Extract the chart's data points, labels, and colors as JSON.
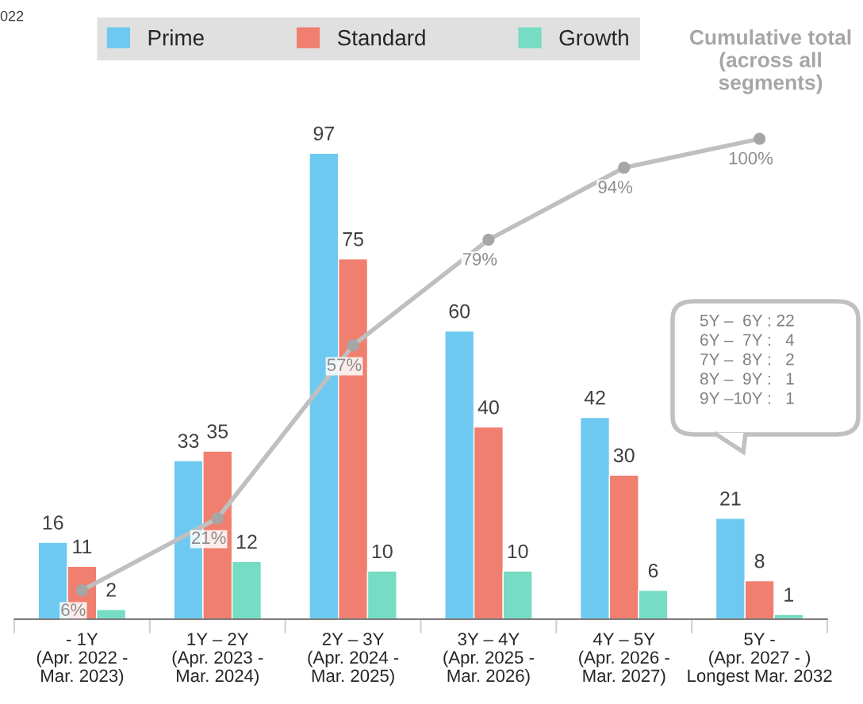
{
  "chart_data": {
    "type": "bar",
    "categories": [
      "- 1Y\n(Apr. 2022 -\nMar. 2023)",
      "1Y – 2Y\n(Apr. 2023 -\nMar. 2024)",
      "2Y – 3Y\n(Apr. 2024 -\nMar. 2025)",
      "3Y – 4Y\n(Apr. 2025 -\nMar. 2026)",
      "4Y – 5Y\n(Apr. 2026 -\nMar. 2027)",
      "5Y -\n(Apr. 2027 - )\nLongest Mar. 2032"
    ],
    "series": [
      {
        "name": "Prime",
        "color": "#6ec9f0",
        "values": [
          16,
          33,
          97,
          60,
          42,
          21
        ]
      },
      {
        "name": "Standard",
        "color": "#f07f6f",
        "values": [
          11,
          35,
          75,
          40,
          30,
          8
        ]
      },
      {
        "name": "Growth",
        "color": "#76dcc4",
        "values": [
          2,
          12,
          10,
          10,
          6,
          1
        ]
      },
      {
        "name": "Cumulative total (across all segments)",
        "type": "line",
        "color": "#bfbfbf",
        "marker": "circle",
        "values": [
          6,
          21,
          57,
          79,
          94,
          100
        ],
        "value_labels": [
          "6%",
          "21%",
          "57%",
          "79%",
          "94%",
          "100%"
        ]
      }
    ],
    "data_labels": true,
    "legend": "top",
    "grid": false,
    "annotations": [
      "022",
      "5Y –  6Y : 22",
      "6Y –  7Y :   4",
      "7Y –  8Y :   2",
      "8Y –  9Y :   1",
      "9Y –10Y :   1"
    ]
  }
}
